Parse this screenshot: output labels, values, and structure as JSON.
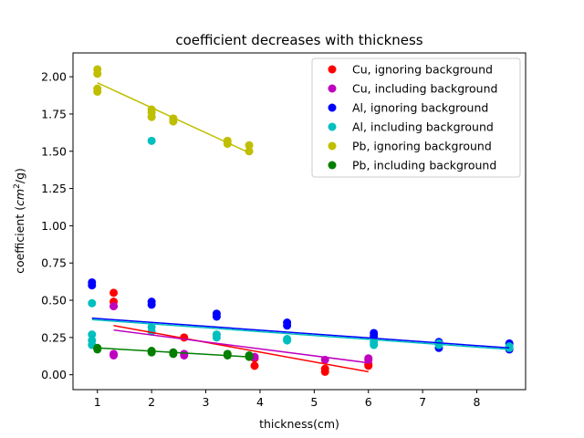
{
  "chart_data": {
    "type": "scatter",
    "title": "coefficient decreases with thickness",
    "xlabel": "thickness(cm)",
    "ylabel_main": "coefficient (",
    "ylabel_italic": "cm",
    "ylabel_sup": "2",
    "ylabel_tail": "/g)",
    "xlim": [
      0.55,
      8.9
    ],
    "ylim": [
      -0.1,
      2.16
    ],
    "xticks": [
      1,
      2,
      3,
      4,
      5,
      6,
      7,
      8
    ],
    "xtick_labels": [
      "1",
      "2",
      "3",
      "4",
      "5",
      "6",
      "7",
      "8"
    ],
    "yticks": [
      0.0,
      0.25,
      0.5,
      0.75,
      1.0,
      1.25,
      1.5,
      1.75,
      2.0
    ],
    "ytick_labels": [
      "0.00",
      "0.25",
      "0.50",
      "0.75",
      "1.00",
      "1.25",
      "1.50",
      "1.75",
      "2.00"
    ],
    "legend_position": "top-right",
    "grid": false,
    "series": [
      {
        "name": "Cu, ignoring background",
        "color": "#ff0000",
        "points": [
          [
            1.3,
            0.55
          ],
          [
            1.3,
            0.49
          ],
          [
            2.6,
            0.25
          ],
          [
            3.9,
            0.06
          ],
          [
            3.9,
            0.11
          ],
          [
            5.2,
            0.02
          ],
          [
            5.2,
            0.04
          ],
          [
            6.0,
            0.06
          ],
          [
            6.0,
            0.07
          ]
        ],
        "fit": [
          [
            1.3,
            0.33
          ],
          [
            6.0,
            0.02
          ]
        ]
      },
      {
        "name": "Cu, including background",
        "color": "#bf00bf",
        "points": [
          [
            1.3,
            0.46
          ],
          [
            1.3,
            0.14
          ],
          [
            1.3,
            0.13
          ],
          [
            2.6,
            0.13
          ],
          [
            2.6,
            0.14
          ],
          [
            3.9,
            0.12
          ],
          [
            5.2,
            0.1
          ],
          [
            6.0,
            0.1
          ],
          [
            6.0,
            0.11
          ]
        ],
        "fit": [
          [
            1.3,
            0.3
          ],
          [
            6.0,
            0.08
          ]
        ]
      },
      {
        "name": "Al, ignoring background",
        "color": "#0000ff",
        "points": [
          [
            0.9,
            0.62
          ],
          [
            0.9,
            0.6
          ],
          [
            2.0,
            0.49
          ],
          [
            2.0,
            0.47
          ],
          [
            3.2,
            0.41
          ],
          [
            3.2,
            0.39
          ],
          [
            4.5,
            0.35
          ],
          [
            4.5,
            0.33
          ],
          [
            6.1,
            0.28
          ],
          [
            6.1,
            0.26
          ],
          [
            7.3,
            0.22
          ],
          [
            7.3,
            0.18
          ],
          [
            8.6,
            0.21
          ],
          [
            8.6,
            0.17
          ]
        ],
        "fit": [
          [
            0.9,
            0.38
          ],
          [
            8.6,
            0.18
          ]
        ]
      },
      {
        "name": "Al, including background",
        "color": "#00bfbf",
        "points": [
          [
            0.9,
            0.48
          ],
          [
            0.9,
            0.27
          ],
          [
            0.9,
            0.23
          ],
          [
            0.9,
            0.2
          ],
          [
            2.0,
            1.57
          ],
          [
            2.0,
            0.32
          ],
          [
            2.0,
            0.29
          ],
          [
            3.2,
            0.27
          ],
          [
            3.2,
            0.25
          ],
          [
            4.5,
            0.24
          ],
          [
            4.5,
            0.23
          ],
          [
            6.1,
            0.22
          ],
          [
            6.1,
            0.2
          ],
          [
            7.3,
            0.21
          ],
          [
            7.3,
            0.2
          ],
          [
            8.6,
            0.19
          ],
          [
            8.6,
            0.18
          ]
        ],
        "fit": [
          [
            0.9,
            0.37
          ],
          [
            8.6,
            0.17
          ]
        ]
      },
      {
        "name": "Pb, ignoring background",
        "color": "#bfbf00",
        "points": [
          [
            1.0,
            2.05
          ],
          [
            1.0,
            2.02
          ],
          [
            1.0,
            1.92
          ],
          [
            1.0,
            1.9
          ],
          [
            2.0,
            1.78
          ],
          [
            2.0,
            1.76
          ],
          [
            2.0,
            1.73
          ],
          [
            2.4,
            1.72
          ],
          [
            2.4,
            1.7
          ],
          [
            3.4,
            1.57
          ],
          [
            3.4,
            1.55
          ],
          [
            3.8,
            1.54
          ],
          [
            3.8,
            1.5
          ]
        ],
        "fit": [
          [
            1.0,
            1.96
          ],
          [
            3.8,
            1.49
          ]
        ]
      },
      {
        "name": "Pb, including background",
        "color": "#007f00",
        "points": [
          [
            1.0,
            0.18
          ],
          [
            1.0,
            0.17
          ],
          [
            2.0,
            0.16
          ],
          [
            2.0,
            0.15
          ],
          [
            2.4,
            0.15
          ],
          [
            2.4,
            0.14
          ],
          [
            3.4,
            0.14
          ],
          [
            3.4,
            0.13
          ],
          [
            3.8,
            0.13
          ],
          [
            3.8,
            0.12
          ]
        ],
        "fit": [
          [
            1.0,
            0.18
          ],
          [
            3.8,
            0.12
          ]
        ]
      }
    ]
  }
}
